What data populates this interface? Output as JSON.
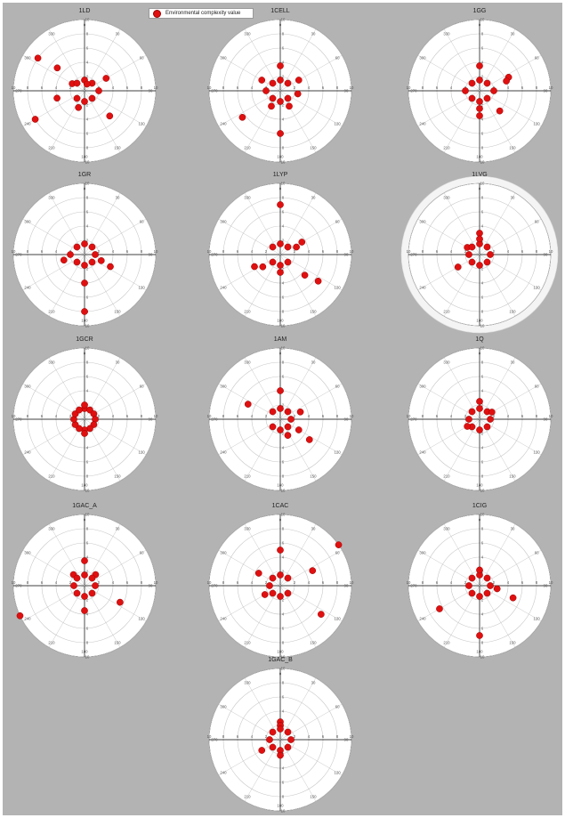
{
  "colors": {
    "marker": "#e01010",
    "marker_edge": "#9a0000",
    "figure_background": "#b3b3b3",
    "plot_background": "#ffffff",
    "grid": "#c8c8c8",
    "axis": "#000000"
  },
  "legend": {
    "label": "Environmental complexity value",
    "placement": "top-left"
  },
  "chart_data": [
    {
      "type": "scatter",
      "coordinates": "polar",
      "title": "1LD",
      "theta_ticks": [
        "0",
        "30",
        "60",
        "90",
        "120",
        "150",
        "180",
        "210",
        "240",
        "270",
        "300",
        "330"
      ],
      "r_ticks": [
        2,
        4,
        6,
        8,
        10
      ],
      "rlim": [
        0,
        10
      ],
      "theta_zero": "top",
      "grid": true,
      "points": [
        {
          "theta": 305,
          "r": 8
        },
        {
          "theta": 310,
          "r": 5
        },
        {
          "theta": 240,
          "r": 8
        },
        {
          "theta": 255,
          "r": 4
        },
        {
          "theta": 60,
          "r": 3.5
        },
        {
          "theta": 135,
          "r": 5
        },
        {
          "theta": 90,
          "r": 2
        },
        {
          "theta": 300,
          "r": 2
        },
        {
          "theta": 0,
          "r": 1.5
        },
        {
          "theta": 180,
          "r": 1.5
        },
        {
          "theta": 45,
          "r": 1.5
        },
        {
          "theta": 135,
          "r": 1.5
        },
        {
          "theta": 225,
          "r": 1.5
        },
        {
          "theta": 315,
          "r": 1.5
        },
        {
          "theta": 200,
          "r": 2.5
        },
        {
          "theta": 20,
          "r": 1
        }
      ]
    },
    {
      "type": "scatter",
      "coordinates": "polar",
      "title": "1CELL",
      "theta_ticks": [
        "0",
        "30",
        "60",
        "90",
        "120",
        "150",
        "180",
        "210",
        "240",
        "270",
        "300",
        "330"
      ],
      "r_ticks": [
        2,
        4,
        6,
        8,
        10
      ],
      "rlim": [
        0,
        10
      ],
      "theta_zero": "top",
      "grid": true,
      "points": [
        {
          "theta": 0,
          "r": 3.5
        },
        {
          "theta": 180,
          "r": 6
        },
        {
          "theta": 235,
          "r": 6.5
        },
        {
          "theta": 300,
          "r": 3
        },
        {
          "theta": 60,
          "r": 3
        },
        {
          "theta": 100,
          "r": 2.5
        },
        {
          "theta": 270,
          "r": 2
        },
        {
          "theta": 0,
          "r": 1.5
        },
        {
          "theta": 180,
          "r": 1.5
        },
        {
          "theta": 45,
          "r": 1.5
        },
        {
          "theta": 135,
          "r": 1.5
        },
        {
          "theta": 225,
          "r": 1.5
        },
        {
          "theta": 315,
          "r": 1.5
        },
        {
          "theta": 150,
          "r": 2.5
        },
        {
          "theta": 210,
          "r": 2.5
        }
      ]
    },
    {
      "type": "scatter",
      "coordinates": "polar",
      "title": "1GG",
      "theta_ticks": [
        "0",
        "30",
        "60",
        "90",
        "120",
        "150",
        "180",
        "210",
        "240",
        "270",
        "300",
        "330"
      ],
      "r_ticks": [
        2,
        4,
        6,
        8,
        10
      ],
      "rlim": [
        0,
        10
      ],
      "theta_zero": "top",
      "grid": true,
      "points": [
        {
          "theta": 0,
          "r": 3.5
        },
        {
          "theta": 65,
          "r": 4.5
        },
        {
          "theta": 70,
          "r": 4
        },
        {
          "theta": 135,
          "r": 4
        },
        {
          "theta": 180,
          "r": 3.5
        },
        {
          "theta": 180,
          "r": 2.5
        },
        {
          "theta": 0,
          "r": 1.5
        },
        {
          "theta": 180,
          "r": 1.5
        },
        {
          "theta": 45,
          "r": 1.5
        },
        {
          "theta": 135,
          "r": 1.5
        },
        {
          "theta": 225,
          "r": 1.5
        },
        {
          "theta": 315,
          "r": 1.5
        },
        {
          "theta": 270,
          "r": 2
        },
        {
          "theta": 90,
          "r": 2
        }
      ]
    },
    {
      "type": "scatter",
      "coordinates": "polar",
      "title": "1GR",
      "theta_ticks": [
        "0",
        "30",
        "60",
        "90",
        "120",
        "150",
        "180",
        "210",
        "240",
        "270",
        "300",
        "330"
      ],
      "r_ticks": [
        2,
        4,
        6,
        8,
        10
      ],
      "rlim": [
        0,
        10
      ],
      "theta_zero": "top",
      "grid": true,
      "points": [
        {
          "theta": 180,
          "r": 8
        },
        {
          "theta": 180,
          "r": 4
        },
        {
          "theta": 115,
          "r": 4
        },
        {
          "theta": 110,
          "r": 2.5
        },
        {
          "theta": 255,
          "r": 3
        },
        {
          "theta": 270,
          "r": 2
        },
        {
          "theta": 0,
          "r": 1.5
        },
        {
          "theta": 180,
          "r": 1.5
        },
        {
          "theta": 45,
          "r": 1.5
        },
        {
          "theta": 135,
          "r": 1.5
        },
        {
          "theta": 225,
          "r": 1.5
        },
        {
          "theta": 315,
          "r": 1.5
        },
        {
          "theta": 90,
          "r": 1.5
        }
      ]
    },
    {
      "type": "scatter",
      "coordinates": "polar",
      "title": "1LYP",
      "theta_ticks": [
        "0",
        "30",
        "60",
        "90",
        "120",
        "150",
        "180",
        "210",
        "240",
        "270",
        "300",
        "330"
      ],
      "r_ticks": [
        2,
        4,
        6,
        8,
        10
      ],
      "rlim": [
        0,
        10
      ],
      "theta_zero": "top",
      "grid": true,
      "points": [
        {
          "theta": 0,
          "r": 7
        },
        {
          "theta": 125,
          "r": 6.5
        },
        {
          "theta": 130,
          "r": 4.5
        },
        {
          "theta": 60,
          "r": 3.5
        },
        {
          "theta": 65,
          "r": 2.5
        },
        {
          "theta": 245,
          "r": 4
        },
        {
          "theta": 235,
          "r": 3
        },
        {
          "theta": 180,
          "r": 2.5
        },
        {
          "theta": 0,
          "r": 1.5
        },
        {
          "theta": 180,
          "r": 1.5
        },
        {
          "theta": 45,
          "r": 1.5
        },
        {
          "theta": 135,
          "r": 1.5
        },
        {
          "theta": 225,
          "r": 1.5
        },
        {
          "theta": 315,
          "r": 1.5
        }
      ]
    },
    {
      "type": "scatter",
      "coordinates": "polar",
      "title": "1LVG",
      "theta_ticks": [
        "0",
        "30",
        "60",
        "90",
        "120",
        "150",
        "180",
        "210",
        "240",
        "270",
        "300",
        "330"
      ],
      "r_ticks": [
        2,
        4,
        6,
        8,
        10
      ],
      "rlim": [
        0,
        10
      ],
      "theta_zero": "top",
      "grid": true,
      "points": [
        {
          "theta": 0,
          "r": 3
        },
        {
          "theta": 240,
          "r": 3.5
        },
        {
          "theta": 300,
          "r": 2
        },
        {
          "theta": 0,
          "r": 1.5
        },
        {
          "theta": 180,
          "r": 1.5
        },
        {
          "theta": 45,
          "r": 1.5
        },
        {
          "theta": 135,
          "r": 1.5
        },
        {
          "theta": 225,
          "r": 1.5
        },
        {
          "theta": 315,
          "r": 1.5
        },
        {
          "theta": 90,
          "r": 1.5
        },
        {
          "theta": 270,
          "r": 1.5
        },
        {
          "theta": 0,
          "r": 2.2
        }
      ]
    },
    {
      "type": "scatter",
      "coordinates": "polar",
      "title": "1GCR",
      "theta_ticks": [
        "0",
        "30",
        "60",
        "90",
        "120",
        "150",
        "180",
        "210",
        "240",
        "270",
        "300",
        "330"
      ],
      "r_ticks": [
        2,
        4,
        6,
        8,
        10
      ],
      "rlim": [
        0,
        10
      ],
      "theta_zero": "top",
      "grid": true,
      "points": [
        {
          "theta": 0,
          "r": 1.5
        },
        {
          "theta": 30,
          "r": 1.5
        },
        {
          "theta": 60,
          "r": 1.5
        },
        {
          "theta": 90,
          "r": 1.5
        },
        {
          "theta": 120,
          "r": 1.5
        },
        {
          "theta": 150,
          "r": 1.5
        },
        {
          "theta": 180,
          "r": 1.5
        },
        {
          "theta": 210,
          "r": 1.5
        },
        {
          "theta": 240,
          "r": 1.5
        },
        {
          "theta": 270,
          "r": 1.5
        },
        {
          "theta": 300,
          "r": 1.5
        },
        {
          "theta": 330,
          "r": 1.5
        },
        {
          "theta": 0,
          "r": 2
        },
        {
          "theta": 180,
          "r": 2
        }
      ]
    },
    {
      "type": "scatter",
      "coordinates": "polar",
      "title": "1AM",
      "theta_ticks": [
        "0",
        "30",
        "60",
        "90",
        "120",
        "150",
        "180",
        "210",
        "240",
        "270",
        "300",
        "330"
      ],
      "r_ticks": [
        2,
        4,
        6,
        8,
        10
      ],
      "rlim": [
        0,
        10
      ],
      "theta_zero": "top",
      "grid": true,
      "points": [
        {
          "theta": 0,
          "r": 4
        },
        {
          "theta": 295,
          "r": 5
        },
        {
          "theta": 125,
          "r": 5
        },
        {
          "theta": 120,
          "r": 3
        },
        {
          "theta": 70,
          "r": 3
        },
        {
          "theta": 155,
          "r": 2.5
        },
        {
          "theta": 0,
          "r": 1.5
        },
        {
          "theta": 180,
          "r": 1.5
        },
        {
          "theta": 45,
          "r": 1.5
        },
        {
          "theta": 135,
          "r": 1.5
        },
        {
          "theta": 225,
          "r": 1.5
        },
        {
          "theta": 315,
          "r": 1.5
        },
        {
          "theta": 90,
          "r": 1.5
        }
      ]
    },
    {
      "type": "scatter",
      "coordinates": "polar",
      "title": "1Q",
      "theta_ticks": [
        "0",
        "30",
        "60",
        "90",
        "120",
        "150",
        "180",
        "210",
        "240",
        "270",
        "300",
        "330"
      ],
      "r_ticks": [
        2,
        4,
        6,
        8,
        10
      ],
      "rlim": [
        0,
        10
      ],
      "theta_zero": "top",
      "grid": true,
      "points": [
        {
          "theta": 0,
          "r": 2.5
        },
        {
          "theta": 0,
          "r": 1.5
        },
        {
          "theta": 180,
          "r": 1.5
        },
        {
          "theta": 45,
          "r": 1.5
        },
        {
          "theta": 135,
          "r": 1.5
        },
        {
          "theta": 225,
          "r": 1.5
        },
        {
          "theta": 315,
          "r": 1.5
        },
        {
          "theta": 90,
          "r": 1.5
        },
        {
          "theta": 270,
          "r": 1.5
        },
        {
          "theta": 60,
          "r": 2
        },
        {
          "theta": 240,
          "r": 2
        }
      ]
    },
    {
      "type": "scatter",
      "coordinates": "polar",
      "title": "1GAC_A",
      "theta_ticks": [
        "0",
        "30",
        "60",
        "90",
        "120",
        "150",
        "180",
        "210",
        "240",
        "270",
        "300",
        "330"
      ],
      "r_ticks": [
        2,
        4,
        6,
        8,
        10
      ],
      "rlim": [
        0,
        10
      ],
      "theta_zero": "top",
      "grid": true,
      "points": [
        {
          "theta": 245,
          "r": 10
        },
        {
          "theta": 115,
          "r": 5.5
        },
        {
          "theta": 180,
          "r": 3.5
        },
        {
          "theta": 0,
          "r": 3.5
        },
        {
          "theta": 45,
          "r": 2.2
        },
        {
          "theta": 315,
          "r": 2.2
        },
        {
          "theta": 0,
          "r": 1.5
        },
        {
          "theta": 180,
          "r": 1.5
        },
        {
          "theta": 45,
          "r": 1.5
        },
        {
          "theta": 135,
          "r": 1.5
        },
        {
          "theta": 225,
          "r": 1.5
        },
        {
          "theta": 315,
          "r": 1.5
        },
        {
          "theta": 90,
          "r": 1.5
        },
        {
          "theta": 270,
          "r": 1.5
        }
      ]
    },
    {
      "type": "scatter",
      "coordinates": "polar",
      "title": "1CAC",
      "theta_ticks": [
        "0",
        "30",
        "60",
        "90",
        "120",
        "150",
        "180",
        "210",
        "240",
        "270",
        "300",
        "330"
      ],
      "r_ticks": [
        2,
        4,
        6,
        8,
        10
      ],
      "rlim": [
        0,
        10
      ],
      "theta_zero": "top",
      "grid": true,
      "points": [
        {
          "theta": 55,
          "r": 10
        },
        {
          "theta": 125,
          "r": 7
        },
        {
          "theta": 65,
          "r": 5
        },
        {
          "theta": 300,
          "r": 3.5
        },
        {
          "theta": 0,
          "r": 5
        },
        {
          "theta": 240,
          "r": 2.5
        },
        {
          "theta": 0,
          "r": 1.5
        },
        {
          "theta": 180,
          "r": 1.5
        },
        {
          "theta": 45,
          "r": 1.5
        },
        {
          "theta": 135,
          "r": 1.5
        },
        {
          "theta": 225,
          "r": 1.5
        },
        {
          "theta": 315,
          "r": 1.5
        },
        {
          "theta": 270,
          "r": 1.5
        }
      ]
    },
    {
      "type": "scatter",
      "coordinates": "polar",
      "title": "1CIG",
      "theta_ticks": [
        "0",
        "30",
        "60",
        "90",
        "120",
        "150",
        "180",
        "210",
        "240",
        "270",
        "300",
        "330"
      ],
      "r_ticks": [
        2,
        4,
        6,
        8,
        10
      ],
      "rlim": [
        0,
        10
      ],
      "theta_zero": "top",
      "grid": true,
      "points": [
        {
          "theta": 180,
          "r": 7
        },
        {
          "theta": 240,
          "r": 6.5
        },
        {
          "theta": 110,
          "r": 5
        },
        {
          "theta": 100,
          "r": 2.5
        },
        {
          "theta": 0,
          "r": 1.5
        },
        {
          "theta": 180,
          "r": 1.5
        },
        {
          "theta": 45,
          "r": 1.5
        },
        {
          "theta": 135,
          "r": 1.5
        },
        {
          "theta": 225,
          "r": 1.5
        },
        {
          "theta": 315,
          "r": 1.5
        },
        {
          "theta": 90,
          "r": 1.5
        },
        {
          "theta": 270,
          "r": 1.5
        },
        {
          "theta": 0,
          "r": 2.2
        }
      ]
    },
    {
      "type": "scatter",
      "coordinates": "polar",
      "title": "1GAC_B",
      "theta_ticks": [
        "0",
        "30",
        "60",
        "90",
        "120",
        "150",
        "180",
        "210",
        "240",
        "270",
        "300",
        "330"
      ],
      "r_ticks": [
        2,
        4,
        6,
        8,
        10
      ],
      "rlim": [
        0,
        10
      ],
      "theta_zero": "top",
      "grid": true,
      "points": [
        {
          "theta": 0,
          "r": 2.5
        },
        {
          "theta": 0,
          "r": 2
        },
        {
          "theta": 240,
          "r": 3
        },
        {
          "theta": 0,
          "r": 1.5
        },
        {
          "theta": 180,
          "r": 1.5
        },
        {
          "theta": 45,
          "r": 1.5
        },
        {
          "theta": 135,
          "r": 1.5
        },
        {
          "theta": 225,
          "r": 1.5
        },
        {
          "theta": 315,
          "r": 1.5
        },
        {
          "theta": 90,
          "r": 1.5
        },
        {
          "theta": 270,
          "r": 1.5
        },
        {
          "theta": 180,
          "r": 2.2
        }
      ]
    }
  ]
}
